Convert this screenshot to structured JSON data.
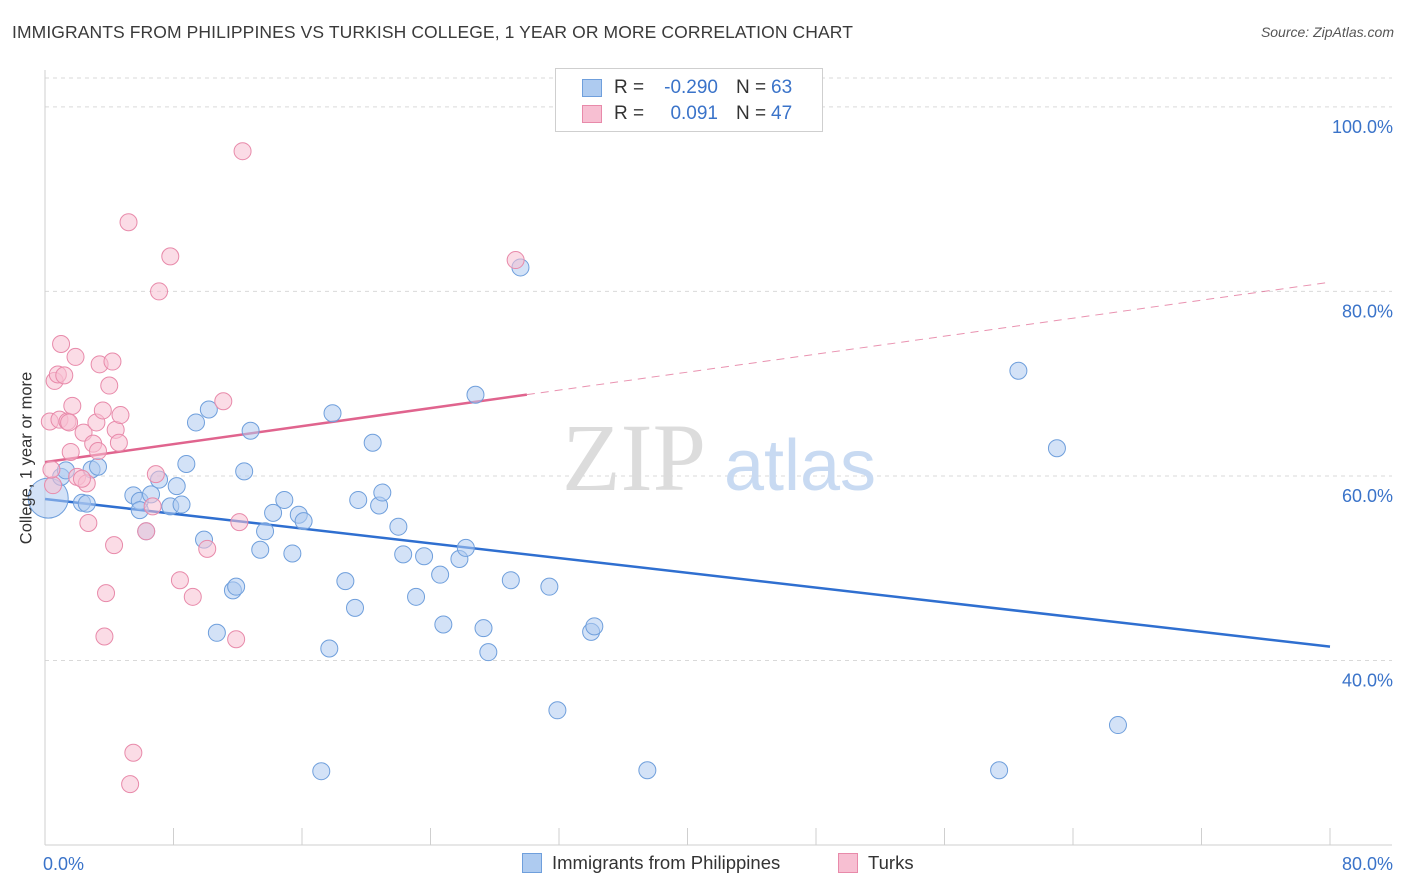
{
  "header": {
    "title": "IMMIGRANTS FROM PHILIPPINES VS TURKISH COLLEGE, 1 YEAR OR MORE CORRELATION CHART",
    "source": "Source: ZipAtlas.com"
  },
  "legend_top": {
    "rows": [
      {
        "r_label": "R =",
        "r_value": "-0.290",
        "n_label": "N =",
        "n_value": "63"
      },
      {
        "r_label": "R =",
        "r_value": "0.091",
        "n_label": "N =",
        "n_value": "47"
      }
    ]
  },
  "colors": {
    "blue_fill": "#aecbf0",
    "blue_stroke": "#6f9fdc",
    "blue_line": "#2f6fd0",
    "pink_fill": "#f7bfd2",
    "pink_stroke": "#e88aaa",
    "pink_line": "#e0648e",
    "axis_label": "#3a73c9",
    "grid": "#d9d9d9"
  },
  "watermark": {
    "zip": "ZIP",
    "atlas": "atlas"
  },
  "chart_data": {
    "type": "scatter",
    "title": "IMMIGRANTS FROM PHILIPPINES VS TURKISH COLLEGE, 1 YEAR OR MORE CORRELATION CHART",
    "xlabel": "",
    "ylabel": "College, 1 year or more",
    "xlim": [
      0,
      80
    ],
    "ylim": [
      20,
      104
    ],
    "x_tick_labels": [
      "0.0%",
      "80.0%"
    ],
    "y_ticks": [
      40,
      60,
      80,
      100
    ],
    "y_tick_labels": [
      "40.0%",
      "60.0%",
      "80.0%",
      "100.0%"
    ],
    "legend_position": "bottom",
    "series": [
      {
        "name": "Immigrants from Philippines",
        "color": "#6f9fdc",
        "trend": {
          "x": [
            0,
            80
          ],
          "y": [
            57.5,
            41.5
          ],
          "dashed_from": null
        },
        "points": [
          [
            0.2,
            57.6
          ],
          [
            1.0,
            59.9
          ],
          [
            1.3,
            60.6
          ],
          [
            2.3,
            57.1
          ],
          [
            2.9,
            60.7
          ],
          [
            3.3,
            61.0
          ],
          [
            5.5,
            57.9
          ],
          [
            5.9,
            57.3
          ],
          [
            6.6,
            58.0
          ],
          [
            5.9,
            56.3
          ],
          [
            6.3,
            54.0
          ],
          [
            7.1,
            59.6
          ],
          [
            7.8,
            56.7
          ],
          [
            8.2,
            58.9
          ],
          [
            8.5,
            56.9
          ],
          [
            8.8,
            61.3
          ],
          [
            9.4,
            65.8
          ],
          [
            10.2,
            67.2
          ],
          [
            9.9,
            53.1
          ],
          [
            10.7,
            43.0
          ],
          [
            11.7,
            47.6
          ],
          [
            11.9,
            48.0
          ],
          [
            12.4,
            60.5
          ],
          [
            12.8,
            64.9
          ],
          [
            13.4,
            52.0
          ],
          [
            13.7,
            54.0
          ],
          [
            14.2,
            56.0
          ],
          [
            14.9,
            57.4
          ],
          [
            15.4,
            51.6
          ],
          [
            15.8,
            55.8
          ],
          [
            16.1,
            55.1
          ],
          [
            17.7,
            41.3
          ],
          [
            17.9,
            66.8
          ],
          [
            18.7,
            48.6
          ],
          [
            19.3,
            45.7
          ],
          [
            19.5,
            57.4
          ],
          [
            20.4,
            63.6
          ],
          [
            20.8,
            56.8
          ],
          [
            21.0,
            58.2
          ],
          [
            22.0,
            54.5
          ],
          [
            22.3,
            51.5
          ],
          [
            23.1,
            46.9
          ],
          [
            23.6,
            51.3
          ],
          [
            24.6,
            49.3
          ],
          [
            24.8,
            43.9
          ],
          [
            25.8,
            51.0
          ],
          [
            26.2,
            52.2
          ],
          [
            26.8,
            68.8
          ],
          [
            27.3,
            43.5
          ],
          [
            27.6,
            40.9
          ],
          [
            29.0,
            48.7
          ],
          [
            29.6,
            82.6
          ],
          [
            31.4,
            48.0
          ],
          [
            31.9,
            34.6
          ],
          [
            34.0,
            43.1
          ],
          [
            34.2,
            43.7
          ],
          [
            37.5,
            28.1
          ],
          [
            59.4,
            28.1
          ],
          [
            60.6,
            71.4
          ],
          [
            63.0,
            63.0
          ],
          [
            66.8,
            33.0
          ],
          [
            17.2,
            28.0
          ],
          [
            2.6,
            57.0
          ]
        ]
      },
      {
        "name": "Turks",
        "color": "#e88aaa",
        "trend": {
          "x": [
            0,
            80
          ],
          "y": [
            61.5,
            81.0
          ],
          "dashed_from": 30
        },
        "points": [
          [
            0.3,
            65.9
          ],
          [
            0.6,
            70.3
          ],
          [
            0.5,
            59.0
          ],
          [
            0.8,
            71.0
          ],
          [
            0.9,
            66.1
          ],
          [
            1.0,
            74.3
          ],
          [
            1.2,
            70.9
          ],
          [
            1.4,
            65.9
          ],
          [
            1.5,
            65.8
          ],
          [
            1.6,
            62.6
          ],
          [
            1.7,
            67.6
          ],
          [
            1.9,
            72.9
          ],
          [
            2.0,
            59.9
          ],
          [
            2.4,
            64.7
          ],
          [
            2.6,
            59.2
          ],
          [
            2.7,
            54.9
          ],
          [
            3.0,
            63.5
          ],
          [
            3.2,
            65.8
          ],
          [
            3.3,
            62.7
          ],
          [
            3.4,
            72.1
          ],
          [
            3.6,
            67.1
          ],
          [
            3.7,
            42.6
          ],
          [
            3.8,
            47.3
          ],
          [
            4.0,
            69.8
          ],
          [
            4.2,
            72.4
          ],
          [
            4.3,
            52.5
          ],
          [
            4.4,
            65.0
          ],
          [
            4.6,
            63.6
          ],
          [
            4.7,
            66.6
          ],
          [
            5.2,
            87.5
          ],
          [
            5.5,
            30.0
          ],
          [
            5.3,
            26.6
          ],
          [
            6.3,
            54.0
          ],
          [
            6.7,
            56.7
          ],
          [
            6.9,
            60.2
          ],
          [
            7.1,
            80.0
          ],
          [
            7.8,
            83.8
          ],
          [
            8.4,
            48.7
          ],
          [
            9.2,
            46.9
          ],
          [
            10.1,
            52.1
          ],
          [
            11.1,
            68.1
          ],
          [
            11.9,
            42.3
          ],
          [
            12.1,
            55.0
          ],
          [
            12.3,
            95.2
          ],
          [
            29.3,
            83.4
          ],
          [
            2.3,
            59.7
          ],
          [
            0.4,
            60.7
          ]
        ]
      }
    ]
  },
  "legend_bottom": {
    "items": [
      "Immigrants from Philippines",
      "Turks"
    ]
  }
}
